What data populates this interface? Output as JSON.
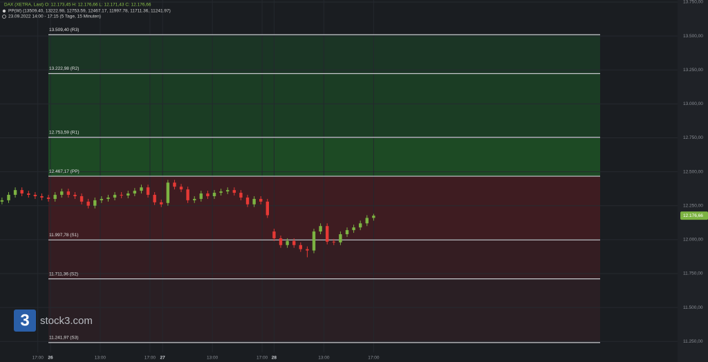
{
  "chart_data": {
    "type": "candlestick",
    "header": [
      "DAX (XETRA, Last)   O: 12.173,45   H: 12.176,66   L: 12.171,43   C: 12.176,66",
      "PP(W)   (13509.40, 13222.98, 12753.59, 12467.17, 11997.78, 11711.36, 11241.97)",
      "23.09.2022 14:00 - 17:15     (5 Tage, 15 Minuten)"
    ],
    "watermark": {
      "mark": "3",
      "text": "stock3.com"
    },
    "ylim": [
      11170,
      13765
    ],
    "yticks": [
      {
        "value": 13750,
        "label": "13.750,00"
      },
      {
        "value": 13500,
        "label": "13.500,00"
      },
      {
        "value": 13250,
        "label": "13.250,00"
      },
      {
        "value": 13000,
        "label": "13.000,00"
      },
      {
        "value": 12750,
        "label": "12.750,00"
      },
      {
        "value": 12500,
        "label": "12.500,00"
      },
      {
        "value": 12250,
        "label": "12.250,00"
      },
      {
        "value": 12000,
        "label": "12.000,00"
      },
      {
        "value": 11750,
        "label": "11.750,00"
      },
      {
        "value": 11500,
        "label": "11.500,00"
      },
      {
        "value": 11250,
        "label": "11.250,00"
      }
    ],
    "xlim": [
      -0.3,
      101.8
    ],
    "xticks": [
      {
        "value": 5.4,
        "label": "17:00"
      },
      {
        "value": 7.3,
        "label": "26"
      },
      {
        "value": 14.8,
        "label": "13:00"
      },
      {
        "value": 22.3,
        "label": "17:00"
      },
      {
        "value": 24.2,
        "label": "27"
      },
      {
        "value": 31.7,
        "label": "13:00"
      },
      {
        "value": 39.2,
        "label": "17:00"
      },
      {
        "value": 41.0,
        "label": "28"
      },
      {
        "value": 48.5,
        "label": "13:00"
      },
      {
        "value": 56.0,
        "label": "17:00"
      }
    ],
    "levels": [
      {
        "value": 13509.4,
        "label": "13.509,40 (R3)"
      },
      {
        "value": 13222.98,
        "label": "13.222,98 (R2)"
      },
      {
        "value": 12753.59,
        "label": "12.753,59 (R1)"
      },
      {
        "value": 12467.17,
        "label": "12.467,17 (PP)"
      },
      {
        "value": 11997.78,
        "label": "11.997,78 (S1)"
      },
      {
        "value": 11711.36,
        "label": "11.711,36 (S2)"
      },
      {
        "value": 11241.97,
        "label": "11.241,97 (S3)"
      }
    ],
    "zone_colors": [
      "#1b3525",
      "#1b3d24",
      "#1d4a24",
      "#3e1c21",
      "#341d22",
      "#2a1f24"
    ],
    "up_color": "#7cb342",
    "down_color": "#e53935",
    "last_label": "12.176,66",
    "open": [
      12280,
      12290,
      12330,
      12365,
      12340,
      12330,
      12320,
      12310,
      12300,
      12330,
      12355,
      12330,
      12320,
      12280,
      12250,
      12290,
      12300,
      12310,
      12330,
      12325,
      12340,
      12360,
      12385,
      12330,
      12275,
      12270,
      12420,
      12390,
      12370,
      12290,
      12300,
      12340,
      12320,
      12345,
      12355,
      12365,
      12345,
      12310,
      12260,
      12300,
      12280,
      12060,
      12010,
      11960,
      11990,
      11960,
      11930,
      11920,
      12060,
      12100,
      11985,
      11980,
      12040,
      12070,
      12090,
      12120,
      12160
    ],
    "high": [
      12310,
      12350,
      12385,
      12385,
      12360,
      12350,
      12340,
      12330,
      12350,
      12375,
      12375,
      12350,
      12340,
      12300,
      12310,
      12320,
      12330,
      12350,
      12350,
      12360,
      12380,
      12405,
      12405,
      12350,
      12295,
      12440,
      12440,
      12410,
      12390,
      12320,
      12360,
      12360,
      12365,
      12375,
      12385,
      12385,
      12365,
      12330,
      12320,
      12320,
      12300,
      12080,
      12030,
      12010,
      12010,
      11980,
      11950,
      12080,
      12120,
      12120,
      12005,
      12060,
      12090,
      12110,
      12140,
      12180,
      12190
    ],
    "low": [
      12260,
      12270,
      12310,
      12320,
      12310,
      12300,
      12290,
      12280,
      12280,
      12310,
      12310,
      12300,
      12260,
      12230,
      12230,
      12270,
      12280,
      12290,
      12305,
      12305,
      12320,
      12340,
      12310,
      12255,
      12240,
      12250,
      12370,
      12350,
      12270,
      12270,
      12280,
      12300,
      12300,
      12325,
      12335,
      12325,
      12290,
      12240,
      12240,
      12260,
      12160,
      11990,
      11940,
      11940,
      11940,
      11910,
      11870,
      11900,
      12040,
      11965,
      11960,
      11960,
      12020,
      12050,
      12070,
      12100,
      12140
    ],
    "close": [
      12290,
      12330,
      12365,
      12340,
      12330,
      12320,
      12310,
      12300,
      12330,
      12355,
      12330,
      12320,
      12280,
      12250,
      12290,
      12300,
      12310,
      12330,
      12325,
      12340,
      12360,
      12385,
      12330,
      12275,
      12260,
      12420,
      12390,
      12370,
      12290,
      12300,
      12340,
      12320,
      12345,
      12355,
      12365,
      12345,
      12310,
      12260,
      12300,
      12280,
      12180,
      12010,
      11960,
      11990,
      11960,
      11930,
      11920,
      12060,
      12100,
      11985,
      11980,
      12040,
      12070,
      12090,
      12120,
      12160,
      12176.66
    ]
  }
}
